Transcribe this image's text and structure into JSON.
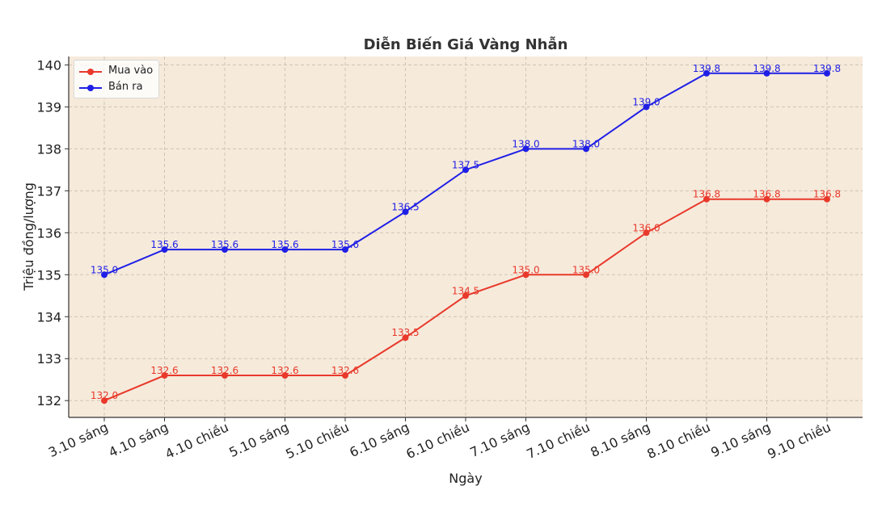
{
  "chart_data": {
    "type": "line",
    "title": "Diễn Biến Giá Vàng Nhẫn",
    "xlabel": "Ngày",
    "ylabel": "Triệu đồng/lượng",
    "categories": [
      "3.10 sáng",
      "4.10 sáng",
      "4.10 chiều",
      "5.10 sáng",
      "5.10 chiều",
      "6.10 sáng",
      "6.10 chiều",
      "7.10 sáng",
      "7.10 chiều",
      "8.10 sáng",
      "8.10 chiều",
      "9.10 sáng",
      "9.10 chiều"
    ],
    "series": [
      {
        "name": "Mua vào",
        "color": "#e8392b",
        "values": [
          132.0,
          132.6,
          132.6,
          132.6,
          132.6,
          133.5,
          134.5,
          135.0,
          135.0,
          136.0,
          136.8,
          136.8,
          136.8
        ]
      },
      {
        "name": "Bán ra",
        "color": "#1f1fe6",
        "values": [
          135.0,
          135.6,
          135.6,
          135.6,
          135.6,
          136.5,
          137.5,
          138.0,
          138.0,
          139.0,
          139.8,
          139.8,
          139.8
        ]
      }
    ],
    "yticks": [
      132,
      133,
      134,
      135,
      136,
      137,
      138,
      139,
      140
    ],
    "ylim": [
      131.6,
      140.2
    ],
    "grid": true,
    "legend_position": "top-left",
    "plot_background": "#f6eadb"
  }
}
